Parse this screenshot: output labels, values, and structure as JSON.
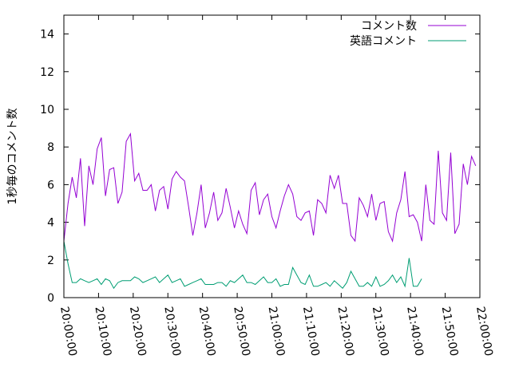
{
  "chart_data": {
    "type": "line",
    "title": "",
    "xlabel": "",
    "ylabel": "1秒毎のコメント数",
    "x_start": "20:00:00",
    "x_end": "22:00:00",
    "x_step_minutes": 1.2,
    "xticks": [
      "20:00:00",
      "20:10:00",
      "20:20:00",
      "20:30:00",
      "20:40:00",
      "20:50:00",
      "21:00:00",
      "21:10:00",
      "21:20:00",
      "21:30:00",
      "21:40:00",
      "21:50:00",
      "22:00:00"
    ],
    "ylim": [
      0,
      15
    ],
    "yticks": [
      0,
      2,
      4,
      6,
      8,
      10,
      12,
      14
    ],
    "grid": false,
    "legend_position": "top-right",
    "series": [
      {
        "name": "コメント数",
        "color": "#9400d3",
        "values": [
          3.0,
          5.0,
          6.4,
          5.3,
          7.4,
          3.8,
          7.0,
          6.0,
          7.9,
          8.5,
          5.4,
          6.8,
          6.9,
          5.0,
          5.6,
          8.3,
          8.7,
          6.2,
          6.6,
          5.7,
          5.7,
          6.0,
          4.6,
          5.7,
          5.9,
          4.7,
          6.3,
          6.7,
          6.4,
          6.2,
          4.8,
          3.3,
          4.5,
          6.0,
          3.7,
          4.5,
          5.6,
          4.1,
          4.5,
          5.8,
          4.8,
          3.7,
          4.6,
          3.9,
          3.4,
          5.7,
          6.1,
          4.4,
          5.2,
          5.5,
          4.3,
          3.7,
          4.6,
          5.4,
          6.0,
          5.5,
          4.3,
          4.1,
          4.5,
          4.6,
          3.3,
          5.2,
          5.0,
          4.5,
          6.5,
          5.8,
          6.5,
          5.0,
          5.0,
          3.3,
          3.0,
          5.3,
          4.9,
          4.3,
          5.5,
          4.1,
          5.0,
          5.1,
          3.5,
          3.0,
          4.5,
          5.2,
          6.7,
          4.3,
          4.4,
          4.0,
          3.0,
          6.0,
          4.1,
          3.9,
          7.8,
          4.5,
          4.1,
          7.7,
          3.4,
          3.9,
          7.1,
          6.0,
          7.5,
          7.0
        ]
      },
      {
        "name": "英語コメント",
        "color": "#009e73",
        "values": [
          3.0,
          1.8,
          0.8,
          0.8,
          1.0,
          0.9,
          0.8,
          0.9,
          1.0,
          0.7,
          1.0,
          0.9,
          0.5,
          0.8,
          0.9,
          0.9,
          0.9,
          1.1,
          1.0,
          0.8,
          0.9,
          1.0,
          1.1,
          0.8,
          1.0,
          1.2,
          0.8,
          0.9,
          1.0,
          0.6,
          0.7,
          0.8,
          0.9,
          1.0,
          0.7,
          0.7,
          0.7,
          0.8,
          0.8,
          0.6,
          0.9,
          0.8,
          1.0,
          1.2,
          0.8,
          0.8,
          0.7,
          0.9,
          1.1,
          0.8,
          0.8,
          1.0,
          0.6,
          0.7,
          0.7,
          1.6,
          1.2,
          0.8,
          0.7,
          1.2,
          0.6,
          0.6,
          0.7,
          0.8,
          0.6,
          0.9,
          0.7,
          0.5,
          0.8,
          1.4,
          1.0,
          0.6,
          0.6,
          0.8,
          0.6,
          1.1,
          0.6,
          0.7,
          0.9,
          1.2,
          0.8,
          1.1,
          0.6,
          2.1,
          0.6,
          0.6,
          1.0
        ]
      }
    ]
  }
}
